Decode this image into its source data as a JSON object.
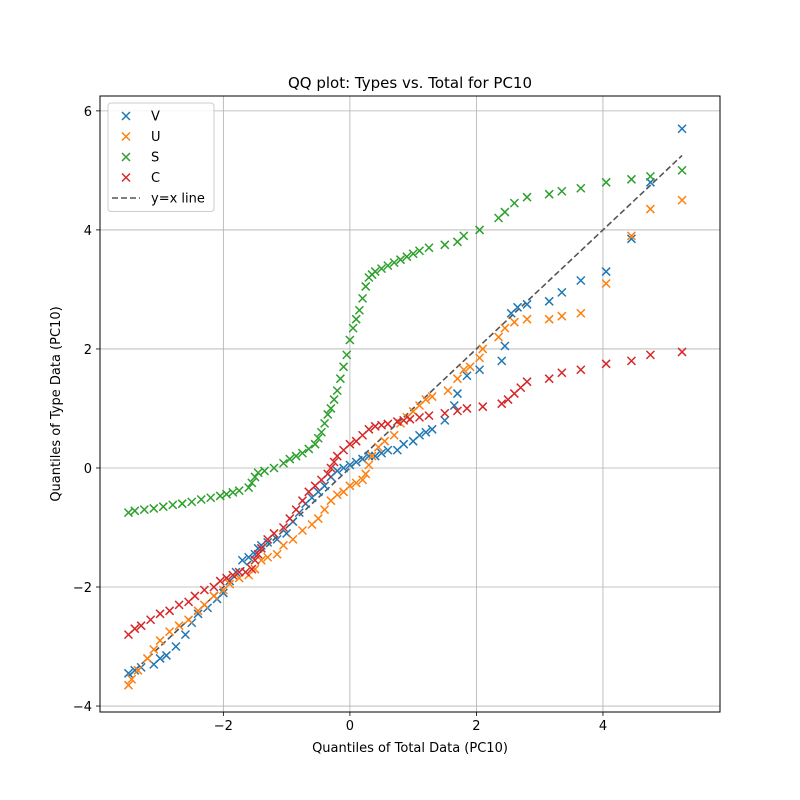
{
  "chart_data": {
    "type": "scatter",
    "title": "QQ plot: Types vs. Total for PC10",
    "xlabel": "Quantiles of Total Data (PC10)",
    "ylabel": "Quantiles of Type Data (PC10)",
    "xlim": [
      -3.95,
      5.85
    ],
    "ylim": [
      -4.1,
      6.25
    ],
    "xticks": [
      -2,
      0,
      2,
      4
    ],
    "yticks": [
      -4,
      -2,
      0,
      2,
      4,
      6
    ],
    "xtick_labels": [
      "−2",
      "0",
      "2",
      "4"
    ],
    "ytick_labels": [
      "−4",
      "−2",
      "0",
      "2",
      "4",
      "6"
    ],
    "grid": true,
    "legend_position": "top-left",
    "marker": "x",
    "reference_line": {
      "name": "y=x line",
      "color": "#555555",
      "style": "dashed",
      "x": [
        -3.5,
        5.25
      ],
      "y": [
        -3.5,
        5.25
      ]
    },
    "series": [
      {
        "name": "V",
        "color": "#1f77b4",
        "points": [
          [
            -3.5,
            -3.45
          ],
          [
            -3.4,
            -3.4
          ],
          [
            -3.3,
            -3.35
          ],
          [
            -3.1,
            -3.3
          ],
          [
            -3.0,
            -3.2
          ],
          [
            -2.9,
            -3.15
          ],
          [
            -2.75,
            -3.0
          ],
          [
            -2.6,
            -2.8
          ],
          [
            -2.5,
            -2.6
          ],
          [
            -2.4,
            -2.45
          ],
          [
            -2.25,
            -2.35
          ],
          [
            -2.1,
            -2.2
          ],
          [
            -2.0,
            -2.1
          ],
          [
            -1.9,
            -1.9
          ],
          [
            -1.8,
            -1.75
          ],
          [
            -1.7,
            -1.55
          ],
          [
            -1.6,
            -1.5
          ],
          [
            -1.5,
            -1.45
          ],
          [
            -1.45,
            -1.35
          ],
          [
            -1.4,
            -1.3
          ],
          [
            -1.3,
            -1.25
          ],
          [
            -1.15,
            -1.2
          ],
          [
            -1.0,
            -1.1
          ],
          [
            -0.9,
            -0.9
          ],
          [
            -0.8,
            -0.75
          ],
          [
            -0.7,
            -0.6
          ],
          [
            -0.6,
            -0.5
          ],
          [
            -0.5,
            -0.4
          ],
          [
            -0.4,
            -0.3
          ],
          [
            -0.3,
            -0.15
          ],
          [
            -0.2,
            -0.05
          ],
          [
            -0.1,
            0.0
          ],
          [
            0.0,
            0.05
          ],
          [
            0.1,
            0.1
          ],
          [
            0.2,
            0.15
          ],
          [
            0.3,
            0.2
          ],
          [
            0.4,
            0.2
          ],
          [
            0.5,
            0.25
          ],
          [
            0.6,
            0.3
          ],
          [
            0.75,
            0.3
          ],
          [
            0.85,
            0.4
          ],
          [
            1.0,
            0.45
          ],
          [
            1.1,
            0.55
          ],
          [
            1.2,
            0.6
          ],
          [
            1.3,
            0.65
          ],
          [
            1.5,
            0.8
          ],
          [
            1.65,
            1.05
          ],
          [
            1.7,
            1.25
          ],
          [
            1.85,
            1.55
          ],
          [
            2.05,
            1.65
          ],
          [
            2.4,
            1.8
          ],
          [
            2.45,
            2.05
          ],
          [
            2.55,
            2.6
          ],
          [
            2.65,
            2.7
          ],
          [
            2.8,
            2.75
          ],
          [
            3.15,
            2.8
          ],
          [
            3.35,
            2.95
          ],
          [
            3.65,
            3.15
          ],
          [
            4.05,
            3.3
          ],
          [
            4.45,
            3.85
          ],
          [
            4.75,
            4.8
          ],
          [
            5.25,
            5.7
          ]
        ]
      },
      {
        "name": "U",
        "color": "#ff7f0e",
        "points": [
          [
            -3.5,
            -3.65
          ],
          [
            -3.45,
            -3.55
          ],
          [
            -3.35,
            -3.4
          ],
          [
            -3.2,
            -3.2
          ],
          [
            -3.1,
            -3.05
          ],
          [
            -3.0,
            -2.9
          ],
          [
            -2.85,
            -2.75
          ],
          [
            -2.7,
            -2.65
          ],
          [
            -2.55,
            -2.55
          ],
          [
            -2.4,
            -2.4
          ],
          [
            -2.3,
            -2.3
          ],
          [
            -2.15,
            -2.15
          ],
          [
            -2.0,
            -2.05
          ],
          [
            -1.9,
            -1.95
          ],
          [
            -1.75,
            -1.85
          ],
          [
            -1.6,
            -1.8
          ],
          [
            -1.5,
            -1.7
          ],
          [
            -1.4,
            -1.55
          ],
          [
            -1.3,
            -1.5
          ],
          [
            -1.15,
            -1.45
          ],
          [
            -1.05,
            -1.3
          ],
          [
            -0.9,
            -1.2
          ],
          [
            -0.75,
            -1.05
          ],
          [
            -0.6,
            -0.95
          ],
          [
            -0.5,
            -0.85
          ],
          [
            -0.4,
            -0.7
          ],
          [
            -0.3,
            -0.55
          ],
          [
            -0.2,
            -0.45
          ],
          [
            -0.1,
            -0.4
          ],
          [
            0.0,
            -0.3
          ],
          [
            0.1,
            -0.25
          ],
          [
            0.2,
            -0.2
          ],
          [
            0.25,
            -0.1
          ],
          [
            0.3,
            0.05
          ],
          [
            0.35,
            0.2
          ],
          [
            0.45,
            0.35
          ],
          [
            0.55,
            0.45
          ],
          [
            0.7,
            0.55
          ],
          [
            0.8,
            0.75
          ],
          [
            0.9,
            0.85
          ],
          [
            1.0,
            0.95
          ],
          [
            1.1,
            1.05
          ],
          [
            1.2,
            1.15
          ],
          [
            1.3,
            1.2
          ],
          [
            1.55,
            1.3
          ],
          [
            1.7,
            1.5
          ],
          [
            1.8,
            1.65
          ],
          [
            1.9,
            1.7
          ],
          [
            2.05,
            1.85
          ],
          [
            2.1,
            2.0
          ],
          [
            2.35,
            2.2
          ],
          [
            2.45,
            2.35
          ],
          [
            2.6,
            2.45
          ],
          [
            2.8,
            2.5
          ],
          [
            3.15,
            2.5
          ],
          [
            3.35,
            2.55
          ],
          [
            3.65,
            2.6
          ],
          [
            4.05,
            3.1
          ],
          [
            4.45,
            3.9
          ],
          [
            4.75,
            4.35
          ],
          [
            5.25,
            4.5
          ]
        ]
      },
      {
        "name": "S",
        "color": "#2ca02c",
        "points": [
          [
            -3.5,
            -0.75
          ],
          [
            -3.4,
            -0.72
          ],
          [
            -3.25,
            -0.7
          ],
          [
            -3.1,
            -0.68
          ],
          [
            -2.95,
            -0.65
          ],
          [
            -2.8,
            -0.62
          ],
          [
            -2.65,
            -0.6
          ],
          [
            -2.5,
            -0.57
          ],
          [
            -2.35,
            -0.53
          ],
          [
            -2.2,
            -0.5
          ],
          [
            -2.05,
            -0.47
          ],
          [
            -1.95,
            -0.44
          ],
          [
            -1.85,
            -0.41
          ],
          [
            -1.75,
            -0.38
          ],
          [
            -1.6,
            -0.33
          ],
          [
            -1.55,
            -0.25
          ],
          [
            -1.5,
            -0.15
          ],
          [
            -1.45,
            -0.08
          ],
          [
            -1.35,
            -0.05
          ],
          [
            -1.2,
            0.0
          ],
          [
            -1.05,
            0.08
          ],
          [
            -0.95,
            0.15
          ],
          [
            -0.85,
            0.2
          ],
          [
            -0.75,
            0.25
          ],
          [
            -0.65,
            0.32
          ],
          [
            -0.55,
            0.4
          ],
          [
            -0.5,
            0.5
          ],
          [
            -0.45,
            0.6
          ],
          [
            -0.4,
            0.75
          ],
          [
            -0.35,
            0.9
          ],
          [
            -0.3,
            1.0
          ],
          [
            -0.25,
            1.15
          ],
          [
            -0.2,
            1.3
          ],
          [
            -0.15,
            1.5
          ],
          [
            -0.1,
            1.7
          ],
          [
            -0.05,
            1.9
          ],
          [
            0.0,
            2.15
          ],
          [
            0.05,
            2.35
          ],
          [
            0.1,
            2.5
          ],
          [
            0.15,
            2.65
          ],
          [
            0.2,
            2.85
          ],
          [
            0.25,
            3.05
          ],
          [
            0.3,
            3.2
          ],
          [
            0.35,
            3.25
          ],
          [
            0.4,
            3.3
          ],
          [
            0.5,
            3.35
          ],
          [
            0.6,
            3.4
          ],
          [
            0.7,
            3.45
          ],
          [
            0.8,
            3.5
          ],
          [
            0.9,
            3.55
          ],
          [
            1.0,
            3.6
          ],
          [
            1.1,
            3.65
          ],
          [
            1.25,
            3.7
          ],
          [
            1.5,
            3.75
          ],
          [
            1.7,
            3.8
          ],
          [
            1.8,
            3.9
          ],
          [
            2.05,
            4.0
          ],
          [
            2.35,
            4.2
          ],
          [
            2.45,
            4.3
          ],
          [
            2.6,
            4.45
          ],
          [
            2.8,
            4.55
          ],
          [
            3.15,
            4.6
          ],
          [
            3.35,
            4.65
          ],
          [
            3.65,
            4.7
          ],
          [
            4.05,
            4.8
          ],
          [
            4.45,
            4.85
          ],
          [
            4.75,
            4.9
          ],
          [
            5.25,
            5.0
          ]
        ]
      },
      {
        "name": "C",
        "color": "#d62728",
        "points": [
          [
            -3.5,
            -2.8
          ],
          [
            -3.4,
            -2.7
          ],
          [
            -3.3,
            -2.65
          ],
          [
            -3.15,
            -2.55
          ],
          [
            -3.0,
            -2.45
          ],
          [
            -2.85,
            -2.4
          ],
          [
            -2.7,
            -2.3
          ],
          [
            -2.55,
            -2.25
          ],
          [
            -2.45,
            -2.15
          ],
          [
            -2.3,
            -2.05
          ],
          [
            -2.15,
            -2.0
          ],
          [
            -2.05,
            -1.9
          ],
          [
            -1.95,
            -1.85
          ],
          [
            -1.85,
            -1.8
          ],
          [
            -1.75,
            -1.75
          ],
          [
            -1.65,
            -1.75
          ],
          [
            -1.55,
            -1.7
          ],
          [
            -1.5,
            -1.55
          ],
          [
            -1.45,
            -1.45
          ],
          [
            -1.4,
            -1.35
          ],
          [
            -1.3,
            -1.2
          ],
          [
            -1.2,
            -1.1
          ],
          [
            -1.05,
            -1.0
          ],
          [
            -0.95,
            -0.85
          ],
          [
            -0.85,
            -0.7
          ],
          [
            -0.75,
            -0.55
          ],
          [
            -0.65,
            -0.4
          ],
          [
            -0.55,
            -0.3
          ],
          [
            -0.45,
            -0.2
          ],
          [
            -0.35,
            -0.1
          ],
          [
            -0.3,
            0.0
          ],
          [
            -0.25,
            0.1
          ],
          [
            -0.2,
            0.2
          ],
          [
            -0.1,
            0.3
          ],
          [
            0.0,
            0.4
          ],
          [
            0.1,
            0.45
          ],
          [
            0.2,
            0.55
          ],
          [
            0.3,
            0.65
          ],
          [
            0.4,
            0.7
          ],
          [
            0.5,
            0.72
          ],
          [
            0.6,
            0.74
          ],
          [
            0.75,
            0.78
          ],
          [
            0.85,
            0.8
          ],
          [
            0.95,
            0.82
          ],
          [
            1.1,
            0.85
          ],
          [
            1.25,
            0.88
          ],
          [
            1.5,
            0.92
          ],
          [
            1.7,
            0.96
          ],
          [
            1.85,
            1.0
          ],
          [
            2.1,
            1.03
          ],
          [
            2.4,
            1.08
          ],
          [
            2.5,
            1.15
          ],
          [
            2.6,
            1.25
          ],
          [
            2.7,
            1.35
          ],
          [
            2.8,
            1.45
          ],
          [
            3.15,
            1.5
          ],
          [
            3.35,
            1.6
          ],
          [
            3.65,
            1.65
          ],
          [
            4.05,
            1.75
          ],
          [
            4.45,
            1.8
          ],
          [
            4.75,
            1.9
          ],
          [
            5.25,
            1.95
          ]
        ]
      }
    ]
  }
}
